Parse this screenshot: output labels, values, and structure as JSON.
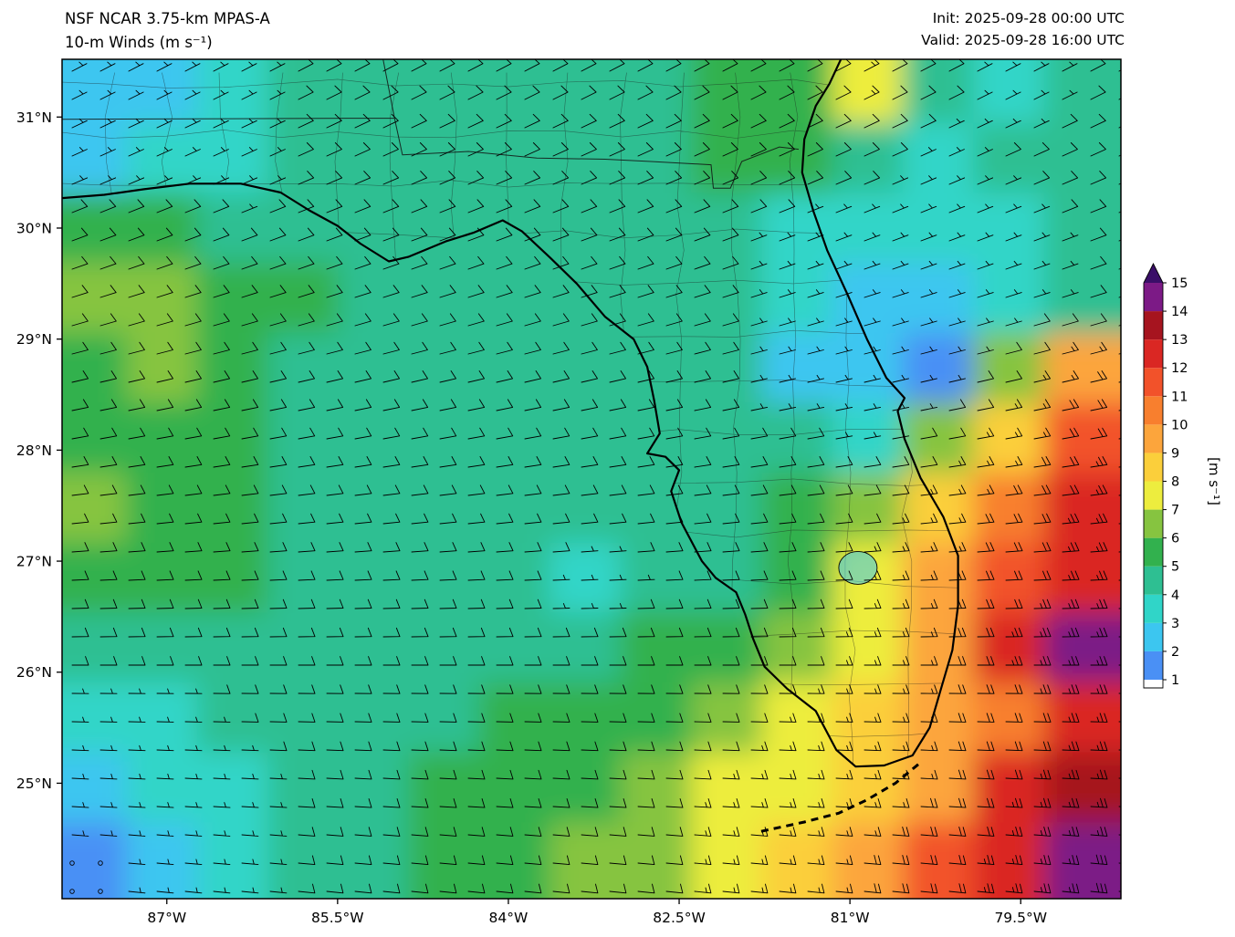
{
  "header": {
    "model": "NSF NCAR 3.75-km MPAS-A",
    "product": "10-m Winds (m s⁻¹)",
    "init": "Init: 2025-09-28 00:00 UTC",
    "valid": "Valid: 2025-09-28 16:00 UTC"
  },
  "chart_data": {
    "type": "heatmap",
    "title": "NSF NCAR 3.75-km MPAS-A 10-m Winds",
    "units": "m s⁻¹",
    "init_time": "2025-09-28 00:00 UTC",
    "valid_time": "2025-09-28 16:00 UTC",
    "x_ticks": [
      "87°W",
      "85.5°W",
      "84°W",
      "82.5°W",
      "81°W",
      "79.5°W"
    ],
    "y_ticks": [
      "31°N",
      "30°N",
      "29°N",
      "28°N",
      "27°N",
      "26°N",
      "25°N"
    ],
    "lon_range_west_deg": [
      87.92,
      78.62
    ],
    "lat_range_deg": [
      23.96,
      31.52
    ],
    "grid": "on-map county and state boundaries, no lat/lon gridlines",
    "legend_position": "right colorbar",
    "colorbar": {
      "label": "[m s⁻¹]",
      "ticks": [
        1,
        2,
        3,
        4,
        5,
        6,
        7,
        8,
        9,
        10,
        11,
        12,
        13,
        14,
        15
      ],
      "under_color": "#ffffff",
      "band_colors": [
        "#4a90f5",
        "#3cc6f0",
        "#30d5c8",
        "#2ebf92",
        "#32b14e",
        "#86c440",
        "#eded3e",
        "#fbcf3b",
        "#fca53c",
        "#f87f2e",
        "#f2522a",
        "#da2723",
        "#a6141f",
        "#7c1a86"
      ],
      "over_color": "#3a0e68"
    },
    "wind_speed_grid_ms": {
      "note": "approximate 10-m wind speed (m/s) read from shading; 12 rows north-to-south x 15 cols west-to-east",
      "rows": [
        [
          2,
          2,
          3,
          4,
          4,
          4,
          4,
          4,
          4,
          5,
          5,
          7,
          4,
          3,
          4
        ],
        [
          2,
          3,
          3,
          4,
          4,
          4,
          4,
          4,
          4,
          5,
          5,
          4,
          3,
          4,
          4
        ],
        [
          5,
          5,
          4,
          4,
          4,
          4,
          4,
          4,
          4,
          4,
          3,
          3,
          3,
          3,
          4
        ],
        [
          6,
          6,
          5,
          5,
          4,
          4,
          4,
          4,
          4,
          4,
          3,
          2,
          2,
          3,
          4
        ],
        [
          5,
          6,
          5,
          4,
          4,
          4,
          4,
          4,
          4,
          4,
          2,
          2,
          1,
          6,
          9
        ],
        [
          5,
          5,
          5,
          4,
          4,
          4,
          4,
          4,
          4,
          4,
          4,
          3,
          6,
          8,
          11
        ],
        [
          6,
          5,
          5,
          4,
          4,
          4,
          4,
          4,
          4,
          4,
          5,
          6,
          8,
          10,
          12
        ],
        [
          5,
          5,
          5,
          4,
          4,
          4,
          4,
          3,
          4,
          4,
          5,
          7,
          9,
          11,
          12
        ],
        [
          4,
          4,
          4,
          4,
          4,
          4,
          4,
          4,
          5,
          5,
          6,
          7,
          9,
          12,
          14
        ],
        [
          3,
          3,
          4,
          4,
          4,
          4,
          5,
          5,
          5,
          6,
          7,
          8,
          9,
          10,
          12
        ],
        [
          2,
          3,
          3,
          4,
          4,
          5,
          5,
          5,
          6,
          7,
          7,
          8,
          9,
          12,
          13
        ],
        [
          1,
          2,
          3,
          4,
          4,
          5,
          5,
          6,
          6,
          7,
          8,
          9,
          11,
          12,
          14
        ]
      ]
    },
    "wind_from_direction_deg_rows": [
      62,
      65,
      68,
      72,
      76,
      80,
      84,
      88,
      90,
      92,
      94,
      96
    ],
    "barb_convention": {
      "full_barb_ms": 5,
      "half_barb_ms": 2.5,
      "calm_circle_below_ms": 1.1
    }
  }
}
